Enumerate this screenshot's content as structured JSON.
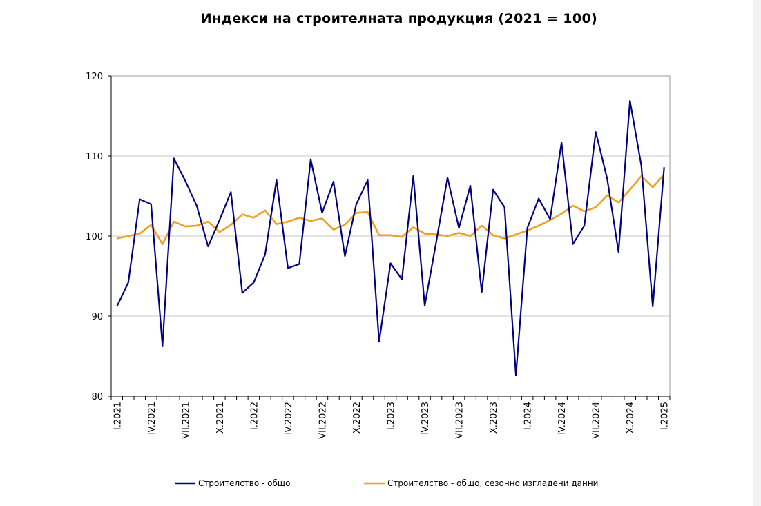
{
  "chart_data": {
    "type": "line",
    "title": "Индекси на строителната продукция (2021 = 100)",
    "xlabel": "",
    "ylabel": "",
    "ylim": [
      80,
      120
    ],
    "yticks": [
      80,
      90,
      100,
      110,
      120
    ],
    "grid": "horizontal",
    "legend_position": "bottom",
    "x": [
      "I.2021",
      "II.2021",
      "III.2021",
      "IV.2021",
      "V.2021",
      "VI.2021",
      "VII.2021",
      "VIII.2021",
      "IX.2021",
      "X.2021",
      "XI.2021",
      "XII.2021",
      "I.2022",
      "II.2022",
      "III.2022",
      "IV.2022",
      "V.2022",
      "VI.2022",
      "VII.2022",
      "VIII.2022",
      "IX.2022",
      "X.2022",
      "XI.2022",
      "XII.2022",
      "I.2023",
      "II.2023",
      "III.2023",
      "IV.2023",
      "V.2023",
      "VI.2023",
      "VII.2023",
      "VIII.2023",
      "IX.2023",
      "X.2023",
      "XI.2023",
      "XII.2023",
      "I.2024",
      "II.2024",
      "III.2024",
      "IV.2024",
      "V.2024",
      "VI.2024",
      "VII.2024",
      "VIII.2024",
      "IX.2024",
      "X.2024",
      "XI.2024",
      "XII.2024",
      "I.2025"
    ],
    "tick_labels": [
      "I.2021",
      "IV.2021",
      "VII.2021",
      "X.2021",
      "I.2022",
      "IV.2022",
      "VII.2022",
      "X.2022",
      "I.2023",
      "IV.2023",
      "VII.2023",
      "X.2023",
      "I.2024",
      "IV.2024",
      "VII.2024",
      "X.2024",
      "I.2025"
    ],
    "series": [
      {
        "name": "Строителство - общо",
        "color": "#000080",
        "values": [
          91.2,
          94.2,
          104.6,
          104.0,
          86.3,
          109.7,
          106.9,
          103.8,
          98.7,
          102.0,
          105.5,
          92.9,
          94.2,
          97.7,
          107.0,
          96.0,
          96.5,
          109.6,
          102.9,
          106.8,
          97.5,
          104.0,
          107.0,
          86.8,
          96.6,
          94.6,
          107.5,
          91.3,
          99.2,
          107.3,
          101.0,
          106.3,
          93.0,
          105.8,
          103.6,
          82.6,
          101.0,
          104.7,
          102.1,
          111.7,
          99.0,
          101.3,
          113.0,
          107.2,
          98.0,
          116.9,
          108.8,
          91.2,
          108.6
        ]
      },
      {
        "name": "Строителство - общо, сезонно изгладени данни",
        "color": "#F0A020",
        "values": [
          99.7,
          100.0,
          100.3,
          101.4,
          99.0,
          101.8,
          101.2,
          101.3,
          101.8,
          100.5,
          101.4,
          102.7,
          102.3,
          103.2,
          101.5,
          101.8,
          102.3,
          101.9,
          102.2,
          100.8,
          101.4,
          102.9,
          103.0,
          100.1,
          100.1,
          99.9,
          101.1,
          100.3,
          100.2,
          100.0,
          100.4,
          100.0,
          101.3,
          100.1,
          99.7,
          100.2,
          100.7,
          101.3,
          102.0,
          102.8,
          103.8,
          103.1,
          103.6,
          105.1,
          104.2,
          105.8,
          107.5,
          106.1,
          107.7
        ]
      }
    ]
  }
}
